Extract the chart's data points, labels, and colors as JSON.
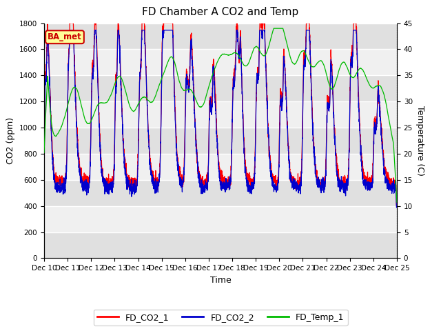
{
  "title": "FD Chamber A CO2 and Temp",
  "xlabel": "Time",
  "ylabel_left": "CO2 (ppm)",
  "ylabel_right": "Temperature (C)",
  "ylim_left": [
    0,
    1800
  ],
  "ylim_right": [
    0,
    45
  ],
  "yticks_left": [
    0,
    200,
    400,
    600,
    800,
    1000,
    1200,
    1400,
    1600,
    1800
  ],
  "yticks_right": [
    0,
    5,
    10,
    15,
    20,
    25,
    30,
    35,
    40,
    45
  ],
  "xtick_labels": [
    "Dec 10",
    "Dec 11",
    "Dec 12",
    "Dec 13",
    "Dec 14",
    "Dec 15",
    "Dec 16",
    "Dec 17",
    "Dec 18",
    "Dec 19",
    "Dec 20",
    "Dec 21",
    "Dec 22",
    "Dec 23",
    "Dec 24",
    "Dec 25"
  ],
  "color_co2_1": "#FF0000",
  "color_co2_2": "#0000CC",
  "color_temp_1": "#00BB00",
  "legend_labels": [
    "FD_CO2_1",
    "FD_CO2_2",
    "FD_Temp_1"
  ],
  "annotation_text": "BA_met",
  "annotation_color": "#CC0000",
  "annotation_bg": "#FFFF99",
  "band_color_dark": "#E0E0E0",
  "band_color_light": "#F0F0F0",
  "title_fontsize": 11,
  "axis_fontsize": 9,
  "tick_fontsize": 7.5,
  "legend_fontsize": 9,
  "linewidth": 0.9
}
